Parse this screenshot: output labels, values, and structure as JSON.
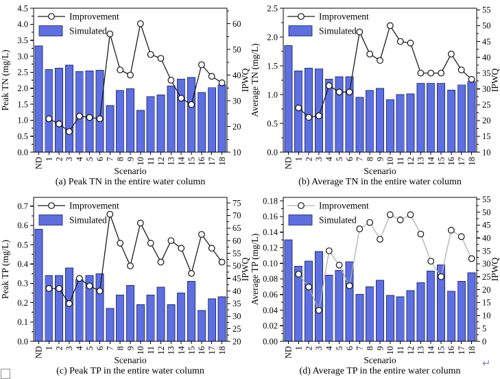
{
  "artifacts": {
    "paragraph_mark": "↵"
  },
  "colors": {
    "bar_fill": "#5e6fe0",
    "bar_edge": "#24307c",
    "line": "#1a1a1a",
    "line_gray": "#b0b0b0",
    "marker_fill": "#ffffff",
    "marker_edge": "#111111",
    "frame": "#000000"
  },
  "chart_data": [
    {
      "type": "bar+line",
      "caption": "(a) Peak TN in the entire water column",
      "x_label": "Scenario",
      "grid": false,
      "legend_position": "top-left",
      "categories": [
        "ND",
        "1",
        "2",
        "3",
        "4",
        "5",
        "6",
        "7",
        "8",
        "9",
        "10",
        "11",
        "12",
        "13",
        "14",
        "15",
        "16",
        "17",
        "18"
      ],
      "left_axis": {
        "label": "Peak TN (mg/L)",
        "min": 0,
        "max": 4.5,
        "ticks_to": 4.5,
        "tick_step": 0.5,
        "decimals": 1
      },
      "right_axis": {
        "label": "IPWQ",
        "min": 10,
        "max": 66,
        "ticks_to": 60,
        "tick_step": 10,
        "decimals": 0
      },
      "line_color": "#1a1a1a",
      "series": [
        {
          "name": "Simulated",
          "type": "bar",
          "axis": "left",
          "values": [
            3.32,
            2.58,
            2.63,
            2.72,
            2.52,
            2.54,
            2.56,
            1.46,
            1.93,
            1.98,
            1.31,
            1.74,
            1.79,
            2.07,
            2.28,
            2.34,
            1.86,
            2.02,
            2.1
          ]
        },
        {
          "name": "Improvement",
          "type": "line",
          "axis": "right",
          "values": [
            null,
            23,
            21,
            18,
            24,
            23.5,
            23,
            56,
            42,
            40,
            60,
            48,
            46.5,
            38,
            31,
            28.5,
            44,
            39.5,
            37
          ]
        }
      ]
    },
    {
      "type": "bar+line",
      "caption": "(b) Average TN in the entire water column",
      "x_label": "Scenario",
      "grid": false,
      "legend_position": "top-left",
      "categories": [
        "ND",
        "1",
        "2",
        "3",
        "4",
        "5",
        "6",
        "7",
        "8",
        "9",
        "10",
        "11",
        "12",
        "13",
        "14",
        "15",
        "16",
        "17",
        "18"
      ],
      "left_axis": {
        "label": "Average TN (mg/L)",
        "min": 0,
        "max": 2.5,
        "ticks_to": 2.5,
        "tick_step": 0.5,
        "decimals": 1
      },
      "right_axis": {
        "label": "IPWQ",
        "min": 10,
        "max": 55.5,
        "ticks_to": 55,
        "tick_step": 5,
        "decimals": 0
      },
      "line_color": "#1a1a1a",
      "series": [
        {
          "name": "Simulated",
          "type": "bar",
          "axis": "left",
          "values": [
            1.85,
            1.41,
            1.46,
            1.45,
            1.27,
            1.31,
            1.31,
            0.95,
            1.07,
            1.11,
            0.91,
            1.0,
            1.01,
            1.2,
            1.2,
            1.2,
            1.08,
            1.17,
            1.23
          ]
        },
        {
          "name": "Improvement",
          "type": "line",
          "axis": "right",
          "values": [
            null,
            24,
            21,
            21.5,
            31,
            29,
            29,
            48,
            41,
            39,
            50,
            45,
            44.5,
            35,
            35,
            35,
            41,
            36,
            33
          ]
        }
      ]
    },
    {
      "type": "bar+line",
      "caption": "(c) Peak TP in the entire water column",
      "x_label": "Scenario",
      "grid": false,
      "legend_position": "top-left",
      "categories": [
        "ND",
        "1",
        "2",
        "3",
        "4",
        "5",
        "6",
        "7",
        "8",
        "9",
        "10",
        "11",
        "12",
        "13",
        "14",
        "15",
        "16",
        "17",
        "18"
      ],
      "left_axis": {
        "label": "Peak TP (mg/L)",
        "min": 0,
        "max": 0.745,
        "ticks_to": 0.7,
        "tick_step": 0.1,
        "decimals": 1
      },
      "right_axis": {
        "label": "IPWQ",
        "min": 20,
        "max": 77.2,
        "ticks_to": 75,
        "tick_step": 5,
        "decimals": 0
      },
      "line_color": "#1a1a1a",
      "series": [
        {
          "name": "Simulated",
          "type": "bar",
          "axis": "left",
          "values": [
            0.58,
            0.34,
            0.34,
            0.38,
            0.32,
            0.34,
            0.35,
            0.17,
            0.24,
            0.29,
            0.19,
            0.24,
            0.28,
            0.19,
            0.25,
            0.31,
            0.16,
            0.22,
            0.23
          ]
        },
        {
          "name": "Improvement",
          "type": "line",
          "axis": "right",
          "values": [
            null,
            41,
            41,
            35,
            45,
            42,
            40,
            70.5,
            59,
            50,
            67,
            59,
            51.5,
            60,
            57,
            47,
            62.5,
            57,
            51.5
          ]
        }
      ]
    },
    {
      "type": "bar+line",
      "caption": "(d) Average TP in the entire water column",
      "x_label": "Scenario",
      "grid": false,
      "legend_position": "top-left",
      "categories": [
        "ND",
        "1",
        "2",
        "3",
        "4",
        "5",
        "6",
        "7",
        "8",
        "9",
        "10",
        "11",
        "12",
        "13",
        "14",
        "15",
        "16",
        "17",
        "18"
      ],
      "left_axis": {
        "label": "Average TP (mg/L)",
        "min": 0,
        "max": 0.1845,
        "ticks_to": 0.18,
        "tick_step": 0.02,
        "decimals": 2
      },
      "right_axis": {
        "label": "IPWQ",
        "min": 0,
        "max": 55.7,
        "ticks_to": 55,
        "tick_step": 5,
        "decimals": 0
      },
      "line_color": "#b0b0b0",
      "series": [
        {
          "name": "Simulated",
          "type": "bar",
          "axis": "left",
          "values": [
            0.13,
            0.096,
            0.103,
            0.115,
            0.085,
            0.091,
            0.102,
            0.06,
            0.07,
            0.078,
            0.059,
            0.057,
            0.065,
            0.075,
            0.09,
            0.098,
            0.064,
            0.077,
            0.088
          ]
        },
        {
          "name": "Improvement",
          "type": "line",
          "axis": "right",
          "values": [
            null,
            26,
            21,
            12,
            35,
            29.5,
            21.5,
            43.5,
            46,
            39.5,
            49,
            47,
            49,
            41.5,
            31,
            25,
            43,
            40.5,
            32
          ]
        }
      ]
    }
  ]
}
